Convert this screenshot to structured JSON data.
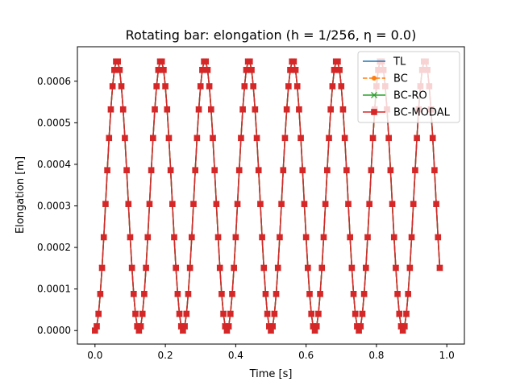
{
  "chart_data": {
    "type": "line",
    "title": "Rotating bar: elongation (h = 1/256, η = 0.0)",
    "xlabel": "Time [s]",
    "ylabel": "Elongation [m]",
    "xlim": [
      -0.05,
      1.05
    ],
    "ylim": [
      -3.25e-05,
      0.000683
    ],
    "xticks": [
      0.0,
      0.2,
      0.4,
      0.6,
      0.8,
      1.0
    ],
    "xtick_labels": [
      "0.0",
      "0.2",
      "0.4",
      "0.6",
      "0.8",
      "1.0"
    ],
    "yticks": [
      0,
      0.0001,
      0.0002,
      0.0003,
      0.0004,
      0.0005,
      0.0006
    ],
    "ytick_labels": [
      "0.0000",
      "0.0001",
      "0.0002",
      "0.0003",
      "0.0004",
      "0.0005",
      "0.0006"
    ],
    "grid": false,
    "legend_position": "top-right",
    "signal": {
      "amplitude_max": 0.00065,
      "period": 0.125,
      "t_end": 0.98,
      "dt": 0.005
    },
    "series": [
      {
        "name": "TL",
        "color": "#1f77b4",
        "style": "solid",
        "marker": "none"
      },
      {
        "name": "BC",
        "color": "#ff7f0e",
        "style": "dashed",
        "marker": "circle"
      },
      {
        "name": "BC-RO",
        "color": "#2ca02c",
        "style": "solid",
        "marker": "x"
      },
      {
        "name": "BC-MODAL",
        "color": "#d62728",
        "style": "solid",
        "marker": "square"
      }
    ]
  }
}
